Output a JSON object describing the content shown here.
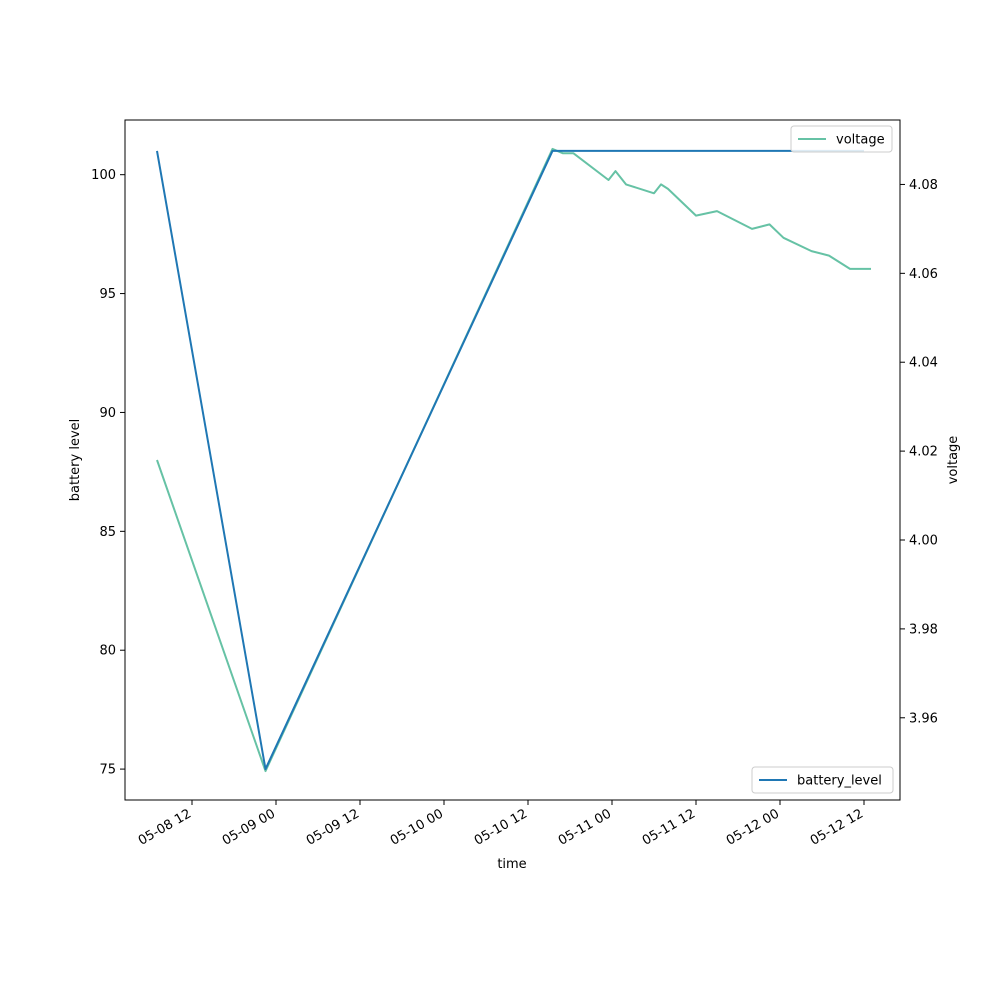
{
  "chart_data": {
    "type": "line",
    "xlabel": "time",
    "ylabel_left": "battery level",
    "ylabel_right": "voltage",
    "x_ticks": [
      "05-08 12",
      "05-09 00",
      "05-09 12",
      "05-10 00",
      "05-10 12",
      "05-11 00",
      "05-11 12",
      "05-12 00",
      "05-12 12"
    ],
    "y_left": {
      "ticks": [
        75,
        80,
        85,
        90,
        95,
        100
      ],
      "range": [
        73.7,
        102.3
      ]
    },
    "y_right": {
      "ticks": [
        3.96,
        3.98,
        4.0,
        4.02,
        4.04,
        4.06,
        4.08
      ],
      "range": [
        3.9415,
        4.0945
      ]
    },
    "grid": false,
    "series": [
      {
        "name": "battery_level",
        "axis": "left",
        "color": "#1f77b4",
        "legend_position": "lower-right",
        "points": [
          [
            "2023-05-08 07:00",
            101
          ],
          [
            "2023-05-08 22:30",
            75
          ],
          [
            "2023-05-10 15:30",
            101
          ],
          [
            "2023-05-12 12:00",
            101
          ]
        ]
      },
      {
        "name": "voltage",
        "axis": "right",
        "color": "#66c2a5",
        "legend_position": "upper-right",
        "points": [
          [
            "2023-05-08 07:00",
            4.018
          ],
          [
            "2023-05-08 22:30",
            3.948
          ],
          [
            "2023-05-10 15:30",
            4.088
          ],
          [
            "2023-05-10 17:00",
            4.087
          ],
          [
            "2023-05-10 18:30",
            4.087
          ],
          [
            "2023-05-10 23:30",
            4.081
          ],
          [
            "2023-05-11 00:30",
            4.083
          ],
          [
            "2023-05-11 02:00",
            4.08
          ],
          [
            "2023-05-11 06:00",
            4.078
          ],
          [
            "2023-05-11 07:00",
            4.08
          ],
          [
            "2023-05-11 08:00",
            4.079
          ],
          [
            "2023-05-11 12:00",
            4.073
          ],
          [
            "2023-05-11 15:00",
            4.074
          ],
          [
            "2023-05-11 20:00",
            4.07
          ],
          [
            "2023-05-11 22:30",
            4.071
          ],
          [
            "2023-05-12 00:30",
            4.068
          ],
          [
            "2023-05-12 04:30",
            4.065
          ],
          [
            "2023-05-12 07:00",
            4.064
          ],
          [
            "2023-05-12 10:00",
            4.061
          ],
          [
            "2023-05-12 13:00",
            4.061
          ]
        ]
      }
    ]
  }
}
